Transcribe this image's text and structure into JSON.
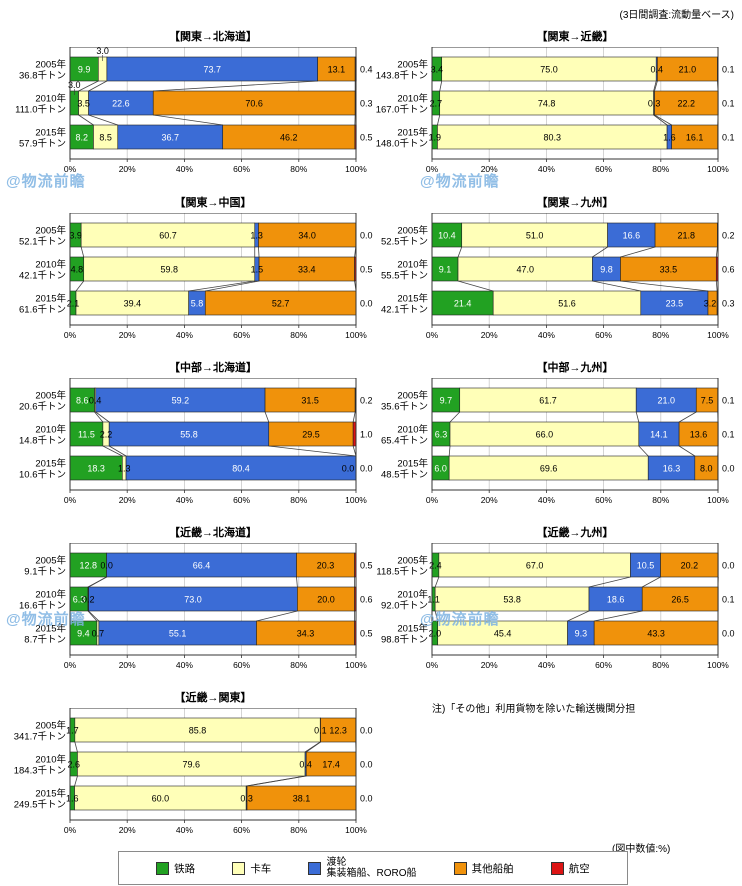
{
  "meta": {
    "top_note": "(3日間調査:流動量ベース)",
    "side_note": "注)「その他」利用貨物を除いた輸送機関分担",
    "bottom_note": "(図中数値:%)",
    "watermark": "@物流前瞻"
  },
  "legend": {
    "items": [
      {
        "label": "铁路"
      },
      {
        "label": "卡车"
      },
      {
        "label": "渡轮",
        "label2": "集装箱船、RORO船"
      },
      {
        "label": "其他船舶"
      },
      {
        "label": "航空"
      }
    ]
  },
  "chart_config": {
    "type": "bar",
    "stacked": true,
    "orientation": "horizontal",
    "unit": "%",
    "xlim": [
      0,
      100
    ],
    "xticks": [
      "0%",
      "20%",
      "40%",
      "60%",
      "80%",
      "100%"
    ],
    "series_names": [
      "铁路",
      "卡车",
      "渡轮・集装箱船、RORO船",
      "其他船舶",
      "航空"
    ],
    "colors": [
      "#22A122",
      "#FFFFB8",
      "#3B6CD6",
      "#F0920B",
      "#DC1414"
    ],
    "grid_color": "#C9C9C9",
    "border_color": "#333333",
    "connector_color": "#444444"
  },
  "chart_data": [
    {
      "type": "bar",
      "title": "【関東→北海道】",
      "rows": [
        {
          "year": "2005年",
          "volume": "36.8千トン",
          "values": [
            9.9,
            3.0,
            73.7,
            13.1,
            0.4
          ],
          "above": [
            1
          ]
        },
        {
          "year": "2010年",
          "volume": "111.0千トン",
          "values": [
            3.0,
            3.5,
            22.6,
            70.6,
            0.3
          ],
          "above": [
            0
          ]
        },
        {
          "year": "2015年",
          "volume": "57.9千トン",
          "values": [
            8.2,
            8.5,
            36.7,
            46.2,
            0.5
          ]
        }
      ]
    },
    {
      "type": "bar",
      "title": "【関東→近畿】",
      "rows": [
        {
          "year": "2005年",
          "volume": "143.8千トン",
          "values": [
            3.4,
            75.0,
            0.4,
            21.0,
            0.1
          ]
        },
        {
          "year": "2010年",
          "volume": "167.0千トン",
          "values": [
            2.7,
            74.8,
            0.3,
            22.2,
            0.1
          ]
        },
        {
          "year": "2015年",
          "volume": "148.0千トン",
          "values": [
            1.9,
            80.3,
            1.6,
            16.1,
            0.1
          ]
        }
      ]
    },
    {
      "type": "bar",
      "title": "【関東→中国】",
      "rows": [
        {
          "year": "2005年",
          "volume": "52.1千トン",
          "values": [
            3.9,
            60.7,
            1.3,
            34.0,
            0.0
          ]
        },
        {
          "year": "2010年",
          "volume": "42.1千トン",
          "values": [
            4.8,
            59.8,
            1.5,
            33.4,
            0.5
          ]
        },
        {
          "year": "2015年",
          "volume": "61.6千トン",
          "values": [
            2.1,
            39.4,
            5.8,
            52.7,
            0.0
          ]
        }
      ]
    },
    {
      "type": "bar",
      "title": "【関東→九州】",
      "rows": [
        {
          "year": "2005年",
          "volume": "52.5千トン",
          "values": [
            10.4,
            51.0,
            16.6,
            21.8,
            0.2
          ]
        },
        {
          "year": "2010年",
          "volume": "55.5千トン",
          "values": [
            9.1,
            47.0,
            9.8,
            33.5,
            0.6
          ]
        },
        {
          "year": "2015年",
          "volume": "42.1千トン",
          "values": [
            21.4,
            51.6,
            23.5,
            3.2,
            0.3
          ]
        }
      ]
    },
    {
      "type": "bar",
      "title": "【中部→北海道】",
      "rows": [
        {
          "year": "2005年",
          "volume": "20.6千トン",
          "values": [
            8.6,
            0.4,
            59.2,
            31.5,
            0.2
          ]
        },
        {
          "year": "2010年",
          "volume": "14.8千トン",
          "values": [
            11.5,
            2.2,
            55.8,
            29.5,
            1.0
          ]
        },
        {
          "year": "2015年",
          "volume": "10.6千トン",
          "values": [
            18.3,
            1.3,
            80.4,
            0.0,
            0.0
          ]
        }
      ]
    },
    {
      "type": "bar",
      "title": "【中部→九州】",
      "rows": [
        {
          "year": "2005年",
          "volume": "35.6千トン",
          "values": [
            9.7,
            61.7,
            21.0,
            7.5,
            0.1
          ]
        },
        {
          "year": "2010年",
          "volume": "65.4千トン",
          "values": [
            6.3,
            66.0,
            14.1,
            13.6,
            0.1
          ]
        },
        {
          "year": "2015年",
          "volume": "48.5千トン",
          "values": [
            6.0,
            69.6,
            16.3,
            8.0,
            0.0
          ]
        }
      ]
    },
    {
      "type": "bar",
      "title": "【近畿→北海道】",
      "rows": [
        {
          "year": "2005年",
          "volume": "9.1千トン",
          "values": [
            12.8,
            0.0,
            66.4,
            20.3,
            0.5
          ]
        },
        {
          "year": "2010年",
          "volume": "16.6千トン",
          "values": [
            6.3,
            0.2,
            73.0,
            20.0,
            0.6
          ]
        },
        {
          "year": "2015年",
          "volume": "8.7千トン",
          "values": [
            9.4,
            0.7,
            55.1,
            34.3,
            0.5
          ]
        }
      ]
    },
    {
      "type": "bar",
      "title": "【近畿→九州】",
      "rows": [
        {
          "year": "2005年",
          "volume": "118.5千トン",
          "values": [
            2.4,
            67.0,
            10.5,
            20.2,
            0.0
          ]
        },
        {
          "year": "2010年",
          "volume": "92.0千トン",
          "values": [
            1.1,
            53.8,
            18.6,
            26.5,
            0.1
          ]
        },
        {
          "year": "2015年",
          "volume": "98.8千トン",
          "values": [
            2.0,
            45.4,
            9.3,
            43.3,
            0.0
          ]
        }
      ]
    },
    {
      "type": "bar",
      "title": "【近畿→関東】",
      "rows": [
        {
          "year": "2005年",
          "volume": "341.7千トン",
          "values": [
            1.7,
            85.8,
            0.1,
            12.3,
            0.0
          ]
        },
        {
          "year": "2010年",
          "volume": "184.3千トン",
          "values": [
            2.6,
            79.6,
            0.4,
            17.4,
            0.0
          ]
        },
        {
          "year": "2015年",
          "volume": "249.5千トン",
          "values": [
            1.6,
            60.0,
            0.3,
            38.1,
            0.0
          ]
        }
      ]
    }
  ]
}
